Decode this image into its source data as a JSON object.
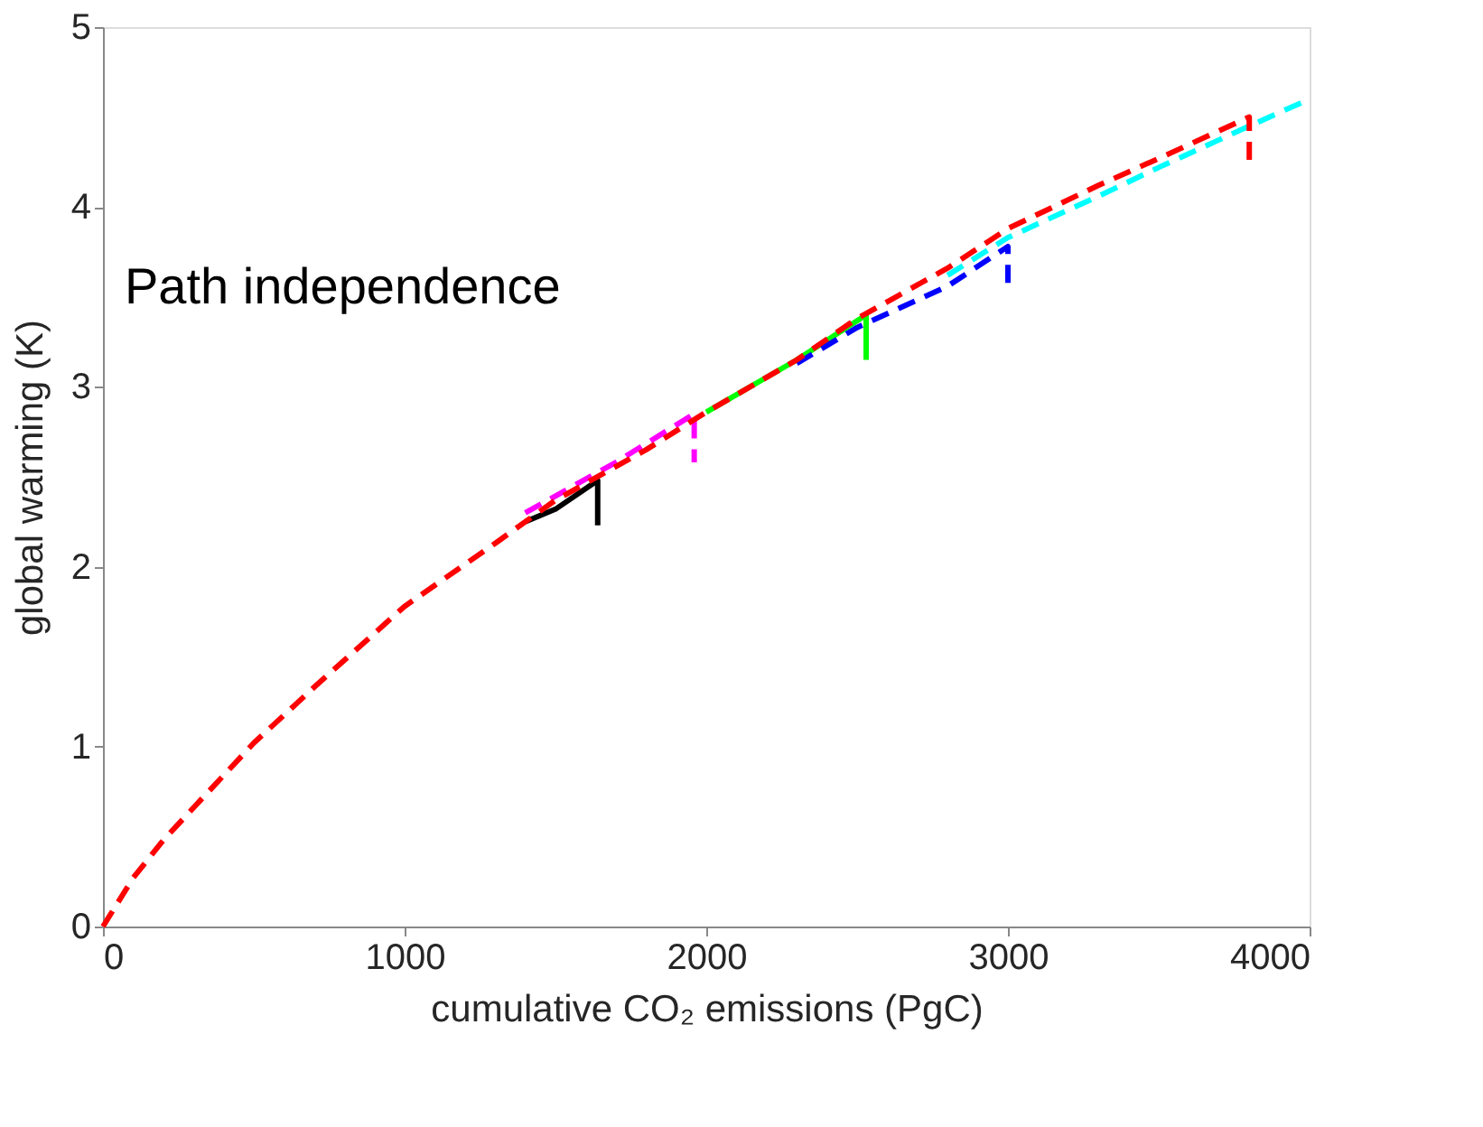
{
  "chart_data": {
    "type": "line",
    "xlabel": "cumulative CO₂ emissions (PgC)",
    "ylabel": "global warming (K)",
    "xlim": [
      0,
      4000
    ],
    "xticks": [
      0,
      1000,
      2000,
      3000,
      4000
    ],
    "ylim": [
      0,
      5
    ],
    "yticks": [
      0,
      1,
      2,
      3,
      4,
      5
    ],
    "grid": false,
    "marker": "none",
    "annotations": [
      "Path independence"
    ],
    "series": [
      {
        "color": "#00ffff",
        "line_style": "dashed",
        "x": [
          2800,
          3000,
          3300,
          3500,
          3800,
          4000
        ],
        "values": [
          3.62,
          3.83,
          4.06,
          4.22,
          4.45,
          4.6
        ]
      },
      {
        "color": "#00ff00",
        "line_style": "solid",
        "x": [
          2000,
          2300,
          2530,
          2530
        ],
        "values": [
          2.86,
          3.15,
          3.4,
          3.15
        ]
      },
      {
        "color": "#000000",
        "line_style": "solid",
        "x": [
          1400,
          1500,
          1640,
          1640
        ],
        "values": [
          2.25,
          2.32,
          2.48,
          2.23
        ]
      },
      {
        "color": "#ff00ff",
        "line_style": "dashed",
        "x": [
          1400,
          1700,
          1960,
          1960
        ],
        "values": [
          2.3,
          2.58,
          2.85,
          2.58
        ]
      },
      {
        "color": "#0000ff",
        "line_style": "dashed",
        "x": [
          2300,
          2500,
          2800,
          3000,
          3000
        ],
        "values": [
          3.13,
          3.33,
          3.56,
          3.78,
          3.55
        ]
      },
      {
        "color": "#ff0000",
        "line_style": "dashed",
        "x": [
          0,
          100,
          200,
          300,
          500,
          700,
          1000,
          1300,
          1500,
          1800,
          2000,
          2300,
          2500,
          2800,
          3000,
          3300,
          3500,
          3800,
          3800
        ],
        "values": [
          0,
          0.27,
          0.48,
          0.66,
          1.02,
          1.33,
          1.78,
          2.13,
          2.37,
          2.65,
          2.86,
          3.15,
          3.38,
          3.66,
          3.88,
          4.12,
          4.27,
          4.5,
          4.25
        ]
      }
    ]
  }
}
